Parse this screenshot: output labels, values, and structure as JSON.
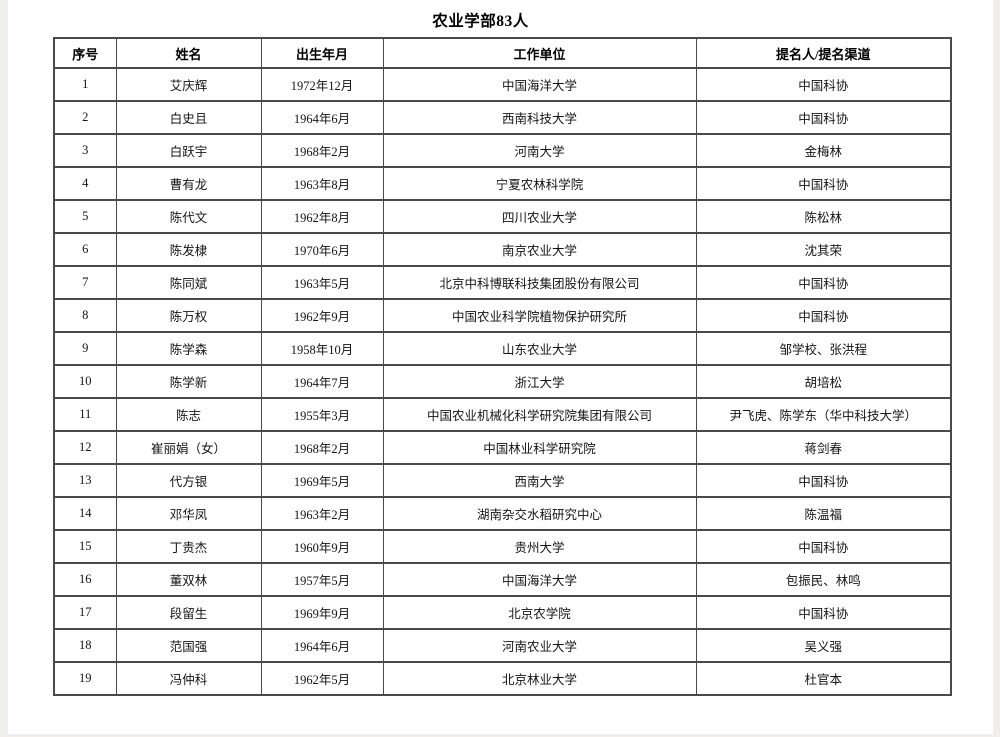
{
  "page": {
    "title": "农业学部83人"
  },
  "table": {
    "headers": [
      "序号",
      "姓名",
      "出生年月",
      "工作单位",
      "提名人/提名渠道"
    ],
    "rows": [
      [
        "1",
        "艾庆辉",
        "1972年12月",
        "中国海洋大学",
        "中国科协"
      ],
      [
        "2",
        "白史且",
        "1964年6月",
        "西南科技大学",
        "中国科协"
      ],
      [
        "3",
        "白跃宇",
        "1968年2月",
        "河南大学",
        "金梅林"
      ],
      [
        "4",
        "曹有龙",
        "1963年8月",
        "宁夏农林科学院",
        "中国科协"
      ],
      [
        "5",
        "陈代文",
        "1962年8月",
        "四川农业大学",
        "陈松林"
      ],
      [
        "6",
        "陈发棣",
        "1970年6月",
        "南京农业大学",
        "沈其荣"
      ],
      [
        "7",
        "陈同斌",
        "1963年5月",
        "北京中科博联科技集团股份有限公司",
        "中国科协"
      ],
      [
        "8",
        "陈万权",
        "1962年9月",
        "中国农业科学院植物保护研究所",
        "中国科协"
      ],
      [
        "9",
        "陈学森",
        "1958年10月",
        "山东农业大学",
        "邹学校、张洪程"
      ],
      [
        "10",
        "陈学新",
        "1964年7月",
        "浙江大学",
        "胡培松"
      ],
      [
        "11",
        "陈志",
        "1955年3月",
        "中国农业机械化科学研究院集团有限公司",
        "尹飞虎、陈学东（华中科技大学）"
      ],
      [
        "12",
        "崔丽娟（女）",
        "1968年2月",
        "中国林业科学研究院",
        "蒋剑春"
      ],
      [
        "13",
        "代方银",
        "1969年5月",
        "西南大学",
        "中国科协"
      ],
      [
        "14",
        "邓华凤",
        "1963年2月",
        "湖南杂交水稻研究中心",
        "陈温福"
      ],
      [
        "15",
        "丁贵杰",
        "1960年9月",
        "贵州大学",
        "中国科协"
      ],
      [
        "16",
        "董双林",
        "1957年5月",
        "中国海洋大学",
        "包振民、林鸣"
      ],
      [
        "17",
        "段留生",
        "1969年9月",
        "北京农学院",
        "中国科协"
      ],
      [
        "18",
        "范国强",
        "1964年6月",
        "河南农业大学",
        "吴义强"
      ],
      [
        "19",
        "冯仲科",
        "1962年5月",
        "北京林业大学",
        "杜官本"
      ]
    ]
  }
}
